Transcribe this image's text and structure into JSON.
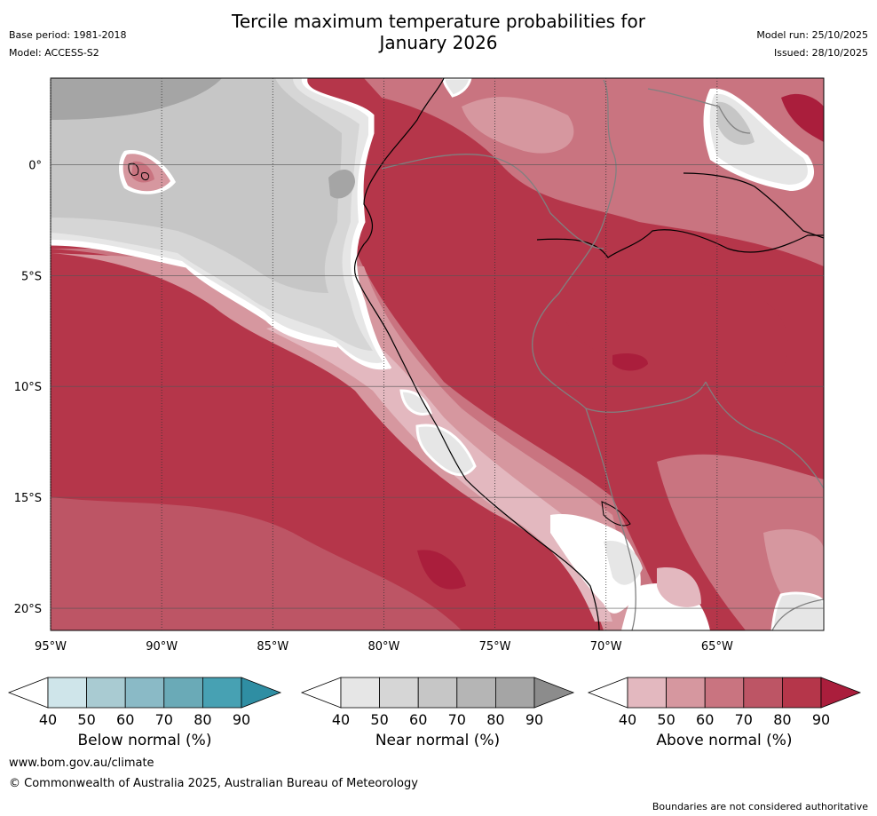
{
  "title": {
    "line1": "Tercile maximum temperature probabilities for",
    "line2": "January 2026"
  },
  "meta_left": {
    "base_period": "Base period: 1981-2018",
    "model": "Model: ACCESS-S2"
  },
  "meta_right": {
    "model_run": "Model run: 25/10/2025",
    "issued": "Issued: 28/10/2025"
  },
  "map": {
    "lon_range": [
      -95,
      -60.2
    ],
    "lat_range": [
      -21,
      3.9
    ],
    "lon_ticks": [
      {
        "value": -95,
        "label": "95°W"
      },
      {
        "value": -90,
        "label": "90°W"
      },
      {
        "value": -85,
        "label": "85°W"
      },
      {
        "value": -80,
        "label": "80°W"
      },
      {
        "value": -75,
        "label": "75°W"
      },
      {
        "value": -70,
        "label": "70°W"
      },
      {
        "value": -65,
        "label": "65°W"
      }
    ],
    "lat_ticks": [
      {
        "value": 0,
        "label": "0°"
      },
      {
        "value": -5,
        "label": "5°S"
      },
      {
        "value": -10,
        "label": "10°S"
      },
      {
        "value": -15,
        "label": "15°S"
      },
      {
        "value": -20,
        "label": "20°S"
      }
    ]
  },
  "colorbars": [
    {
      "name": "below",
      "label": "Below normal (%)",
      "ticks": [
        "40",
        "50",
        "60",
        "70",
        "80",
        "90"
      ],
      "colors": [
        "#ffffff",
        "#cfe5ea",
        "#a9cbd2",
        "#8abac6",
        "#6aaab7",
        "#47a1b3",
        "#2f8ea3"
      ]
    },
    {
      "name": "near",
      "label": "Near normal (%)",
      "ticks": [
        "40",
        "50",
        "60",
        "70",
        "80",
        "90"
      ],
      "colors": [
        "#ffffff",
        "#e6e6e6",
        "#d6d6d6",
        "#c6c6c6",
        "#b5b5b5",
        "#a5a5a5",
        "#8c8c8c"
      ]
    },
    {
      "name": "above",
      "label": "Above normal (%)",
      "ticks": [
        "40",
        "50",
        "60",
        "70",
        "80",
        "90"
      ],
      "colors": [
        "#ffffff",
        "#e3b8bf",
        "#d6979f",
        "#c97480",
        "#bd5565",
        "#b5364a",
        "#aa1e3c"
      ]
    }
  ],
  "footer": {
    "url": "www.bom.gov.au/climate",
    "copyright": "© Commonwealth of Australia 2025, Australian Bureau of Meteorology",
    "disclaimer": "Boundaries are not considered authoritative"
  }
}
